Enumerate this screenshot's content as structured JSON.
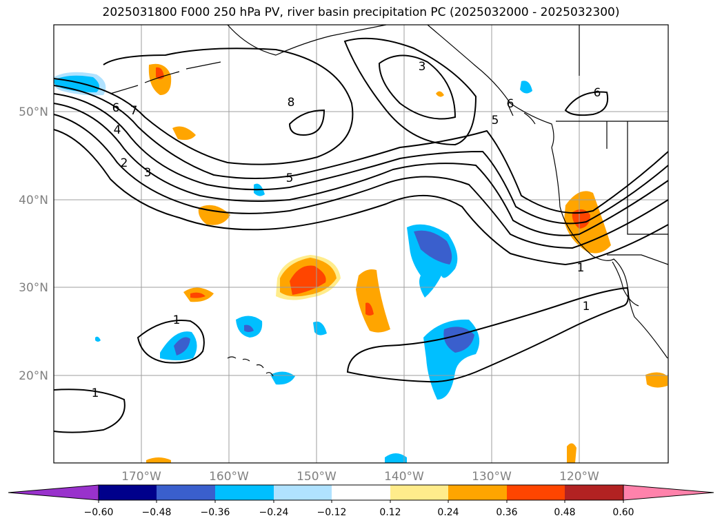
{
  "title": "2025031800 F000 250 hPa PV, river basin precipitation PC (2025032000 - 2025032300)",
  "map": {
    "lon_labels": [
      "170°W",
      "160°W",
      "150°W",
      "140°W",
      "130°W",
      "120°W"
    ],
    "lat_labels": [
      "50°N",
      "40°N",
      "30°N",
      "20°N"
    ],
    "contour_labels": [
      "8",
      "3",
      "6",
      "7",
      "6",
      "4",
      "2",
      "3",
      "5",
      "5",
      "6",
      "1",
      "1",
      "1",
      "1"
    ],
    "label_color": "#808080",
    "contour_color": "#000000"
  },
  "colorbar": {
    "ticks": [
      "−0.60",
      "−0.48",
      "−0.36",
      "−0.24",
      "−0.12",
      "0.12",
      "0.24",
      "0.36",
      "0.48",
      "0.60"
    ],
    "colors": [
      "#9932cc",
      "#00008b",
      "#3a5fcd",
      "#00bfff",
      "#b0e2ff",
      "#ffffff",
      "#ffec8b",
      "#ffa500",
      "#ff4500",
      "#b22222",
      "#ff82ab"
    ]
  }
}
